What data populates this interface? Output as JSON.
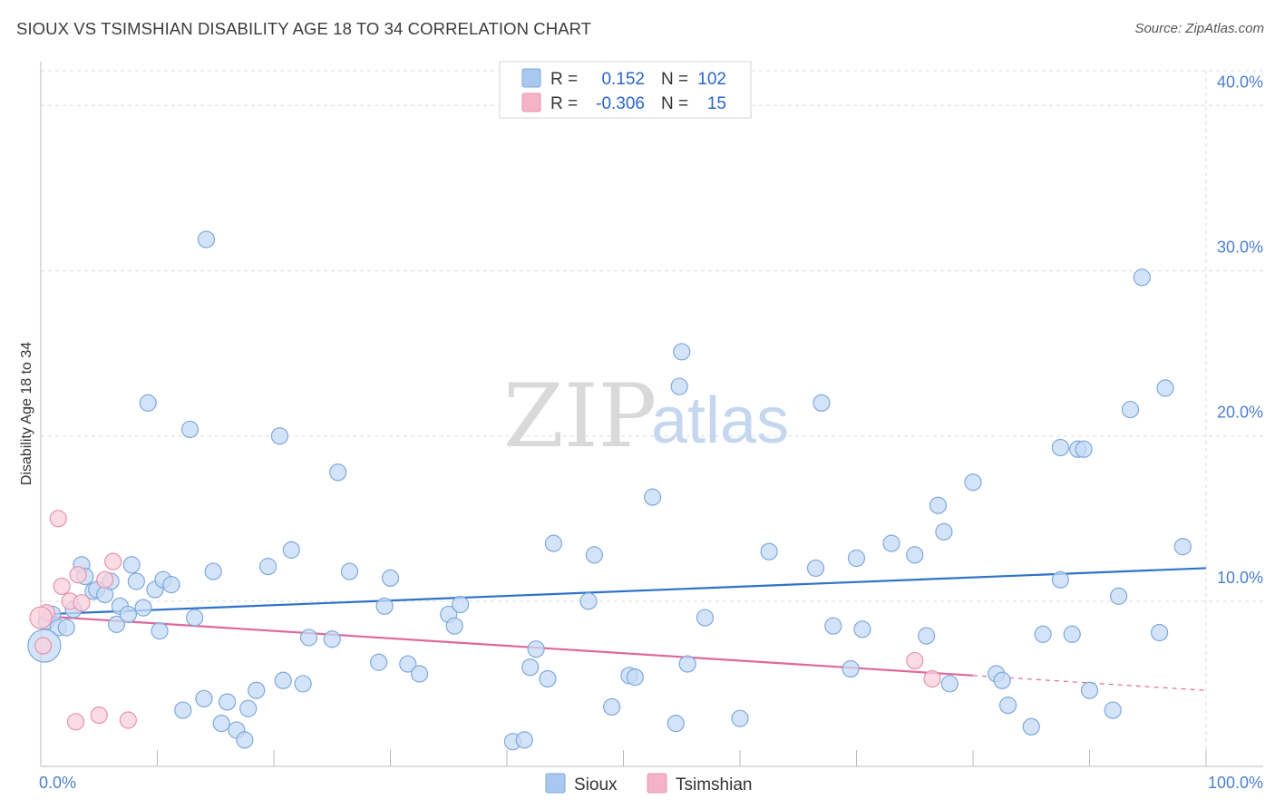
{
  "header": {
    "title": "SIOUX VS TSIMSHIAN DISABILITY AGE 18 TO 34 CORRELATION CHART",
    "source": "Source: ZipAtlas.com"
  },
  "watermark": {
    "zip": "ZIP",
    "atlas": "atlas"
  },
  "legend": {
    "rows": [
      {
        "series": "Sioux",
        "r_label": "R =",
        "r_value": "0.152",
        "n_label": "N =",
        "n_value": "102",
        "color": "#a8c8f0"
      },
      {
        "series": "Tsimshian",
        "r_label": "R =",
        "r_value": "-0.306",
        "n_label": "N =",
        "n_value": "15",
        "color": "#f5b3c8"
      }
    ]
  },
  "colors": {
    "sioux_fill": "#c5dbf5",
    "sioux_stroke": "#7ea8dc",
    "sioux_line": "#2e73c9",
    "tsimshian_fill": "#f9d0dc",
    "tsimshian_stroke": "#e893ae",
    "tsimshian_line": "#e0679a",
    "grid": "#dddddd",
    "tick_text": "#4a7fcf"
  },
  "chart_data": {
    "type": "scatter",
    "title": "SIOUX VS TSIMSHIAN DISABILITY AGE 18 TO 34 CORRELATION CHART",
    "xlabel": "",
    "ylabel": "Disability Age 18 to 34",
    "xlim": [
      0,
      100
    ],
    "ylim": [
      0,
      42
    ],
    "x_tick_labels": [
      "0.0%",
      "100.0%"
    ],
    "y_ticks": [
      10,
      20,
      30,
      40
    ],
    "y_tick_labels": [
      "10.0%",
      "20.0%",
      "30.0%",
      "40.0%"
    ],
    "grid": true,
    "legend_position": "top-center",
    "series": [
      {
        "name": "Sioux",
        "points": [
          [
            0.5,
            8.8
          ],
          [
            1.0,
            9.2
          ],
          [
            1.5,
            8.4
          ],
          [
            2.2,
            8.4
          ],
          [
            2.8,
            9.5
          ],
          [
            3.5,
            12.2
          ],
          [
            3.8,
            11.5
          ],
          [
            4.5,
            10.6
          ],
          [
            4.8,
            10.7
          ],
          [
            5.5,
            10.4
          ],
          [
            6.0,
            11.2
          ],
          [
            6.5,
            8.6
          ],
          [
            6.8,
            9.7
          ],
          [
            7.5,
            9.2
          ],
          [
            7.8,
            12.2
          ],
          [
            8.2,
            11.2
          ],
          [
            8.8,
            9.6
          ],
          [
            9.2,
            22.0
          ],
          [
            9.8,
            10.7
          ],
          [
            10.2,
            8.2
          ],
          [
            10.5,
            11.3
          ],
          [
            11.2,
            11.0
          ],
          [
            12.2,
            3.4
          ],
          [
            12.8,
            20.4
          ],
          [
            13.2,
            9.0
          ],
          [
            14.0,
            4.1
          ],
          [
            14.2,
            31.9
          ],
          [
            14.8,
            11.8
          ],
          [
            15.5,
            2.6
          ],
          [
            16.0,
            3.9
          ],
          [
            16.8,
            2.2
          ],
          [
            17.5,
            1.6
          ],
          [
            17.8,
            3.5
          ],
          [
            18.5,
            4.6
          ],
          [
            19.5,
            12.1
          ],
          [
            20.5,
            20.0
          ],
          [
            20.8,
            5.2
          ],
          [
            21.5,
            13.1
          ],
          [
            22.5,
            5.0
          ],
          [
            23.0,
            7.8
          ],
          [
            25.0,
            7.7
          ],
          [
            25.5,
            17.8
          ],
          [
            26.5,
            11.8
          ],
          [
            29.0,
            6.3
          ],
          [
            29.5,
            9.7
          ],
          [
            30.0,
            11.4
          ],
          [
            31.5,
            6.2
          ],
          [
            32.5,
            5.6
          ],
          [
            35.0,
            9.2
          ],
          [
            35.5,
            8.5
          ],
          [
            36.0,
            9.8
          ],
          [
            40.5,
            1.5
          ],
          [
            41.5,
            1.6
          ],
          [
            42.0,
            6.0
          ],
          [
            42.5,
            7.1
          ],
          [
            43.5,
            5.3
          ],
          [
            44.0,
            13.5
          ],
          [
            47.0,
            10.0
          ],
          [
            47.5,
            12.8
          ],
          [
            49.0,
            3.6
          ],
          [
            50.5,
            5.5
          ],
          [
            51.0,
            5.4
          ],
          [
            52.5,
            16.3
          ],
          [
            54.5,
            2.6
          ],
          [
            54.8,
            23.0
          ],
          [
            55.0,
            25.1
          ],
          [
            55.5,
            6.2
          ],
          [
            57.0,
            9.0
          ],
          [
            60.0,
            2.9
          ],
          [
            62.5,
            13.0
          ],
          [
            66.5,
            12.0
          ],
          [
            67.0,
            22.0
          ],
          [
            68.0,
            8.5
          ],
          [
            69.5,
            5.9
          ],
          [
            70.0,
            12.6
          ],
          [
            70.5,
            8.3
          ],
          [
            73.0,
            13.5
          ],
          [
            75.0,
            12.8
          ],
          [
            76.0,
            7.9
          ],
          [
            77.0,
            15.8
          ],
          [
            77.5,
            14.2
          ],
          [
            78.0,
            5.0
          ],
          [
            80.0,
            17.2
          ],
          [
            82.0,
            5.6
          ],
          [
            82.5,
            5.2
          ],
          [
            83.0,
            3.7
          ],
          [
            85.0,
            2.4
          ],
          [
            86.0,
            8.0
          ],
          [
            87.5,
            19.3
          ],
          [
            87.5,
            11.3
          ],
          [
            88.5,
            8.0
          ],
          [
            89.0,
            19.2
          ],
          [
            89.5,
            19.2
          ],
          [
            90.0,
            4.6
          ],
          [
            92.0,
            3.4
          ],
          [
            92.5,
            10.3
          ],
          [
            93.5,
            21.6
          ],
          [
            94.5,
            29.6
          ],
          [
            96.0,
            8.1
          ],
          [
            96.5,
            22.9
          ],
          [
            98.0,
            13.3
          ],
          [
            0.3,
            7.3
          ]
        ],
        "point_sizes": {
          "default": 9,
          "large_first_point": 18
        }
      },
      {
        "name": "Tsimshian",
        "points": [
          [
            0.2,
            7.3
          ],
          [
            0.5,
            9.3
          ],
          [
            1.5,
            15.0
          ],
          [
            1.8,
            10.9
          ],
          [
            2.5,
            10.0
          ],
          [
            3.0,
            2.7
          ],
          [
            3.2,
            11.6
          ],
          [
            3.5,
            9.9
          ],
          [
            5.0,
            3.1
          ],
          [
            5.5,
            11.3
          ],
          [
            6.2,
            12.4
          ],
          [
            7.5,
            2.8
          ],
          [
            75.0,
            6.4
          ],
          [
            76.5,
            5.3
          ],
          [
            0.0,
            9.0
          ]
        ]
      }
    ],
    "trendlines": [
      {
        "series": "Sioux",
        "from": [
          0,
          9.2
        ],
        "to": [
          100,
          12.0
        ]
      },
      {
        "series": "Tsimshian",
        "from": [
          0,
          9.1
        ],
        "to": [
          80,
          5.5
        ],
        "dashed_extension_to": [
          100,
          4.6
        ]
      }
    ]
  },
  "bottom_legend": {
    "items": [
      {
        "label": "Sioux",
        "color": "#a8c8f0"
      },
      {
        "label": "Tsimshian",
        "color": "#f5b3c8"
      }
    ]
  }
}
